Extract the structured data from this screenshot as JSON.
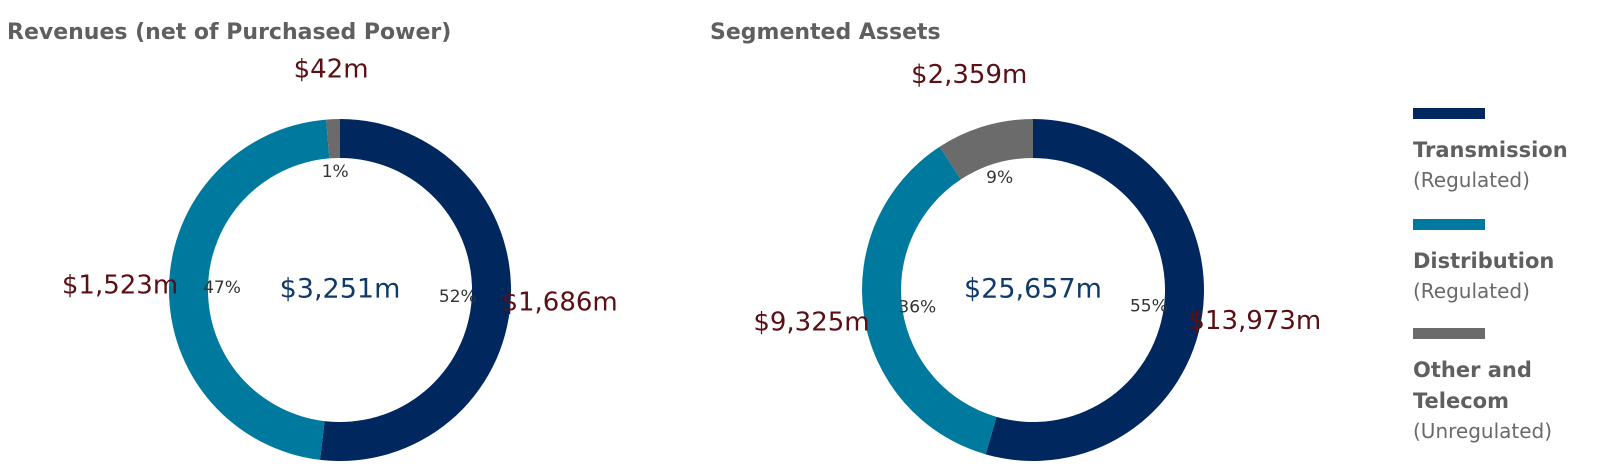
{
  "colors": {
    "transmission": "#00285f",
    "distribution": "#00799f",
    "other": "#6b6b6b"
  },
  "chart_data": [
    {
      "type": "pie",
      "style": "donut",
      "title": "Revenues (net of Purchased Power)",
      "center_label": "$3,251m",
      "categories": [
        "Transmission",
        "Distribution",
        "Other and Telecom"
      ],
      "values": [
        1686,
        1523,
        42
      ],
      "unit": "$m",
      "value_labels": [
        "$1,686m",
        "$1,523m",
        "$42m"
      ],
      "percent_labels": [
        "52%",
        "47%",
        "1%"
      ]
    },
    {
      "type": "pie",
      "style": "donut",
      "title": "Segmented Assets",
      "center_label": "$25,657m",
      "categories": [
        "Transmission",
        "Distribution",
        "Other and Telecom"
      ],
      "values": [
        13973,
        9325,
        2359
      ],
      "unit": "$m",
      "value_labels": [
        "$13,973m",
        "$9,325m",
        "$2,359m"
      ],
      "percent_labels": [
        "55%",
        "36%",
        "9%"
      ]
    }
  ],
  "legend": [
    {
      "name": "Transmission",
      "sub": "(Regulated)",
      "color": "#00285f"
    },
    {
      "name": "Distribution",
      "sub": "(Regulated)",
      "color": "#00799f"
    },
    {
      "name": "Other and Telecom",
      "sub": "(Unregulated)",
      "color": "#6b6b6b"
    }
  ]
}
